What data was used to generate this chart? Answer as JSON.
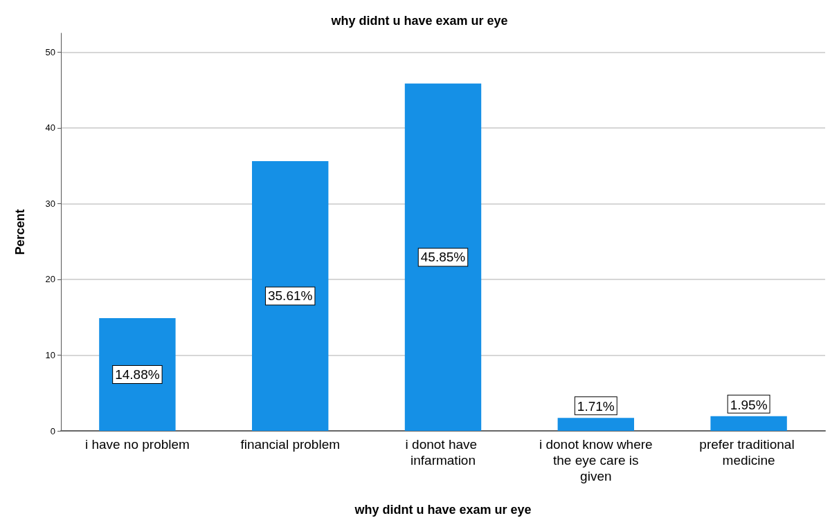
{
  "chart_data": {
    "type": "bar",
    "title": "why didnt u have exam ur eye",
    "xlabel": "why didnt u have exam ur eye",
    "ylabel": "Percent",
    "categories": [
      "i have no problem",
      "financial problem",
      "i donot have infarmation",
      "i donot know where the eye care is given",
      "prefer traditional medicine"
    ],
    "values": [
      14.88,
      35.61,
      45.85,
      1.71,
      1.95
    ],
    "value_labels": [
      "14.88%",
      "35.61%",
      "45.85%",
      "1.71%",
      "1.95%"
    ],
    "color": "#1590e6",
    "ylim": [
      0,
      52.5
    ],
    "yticks": [
      0,
      10,
      20,
      30,
      40,
      50
    ],
    "grid": "y"
  }
}
